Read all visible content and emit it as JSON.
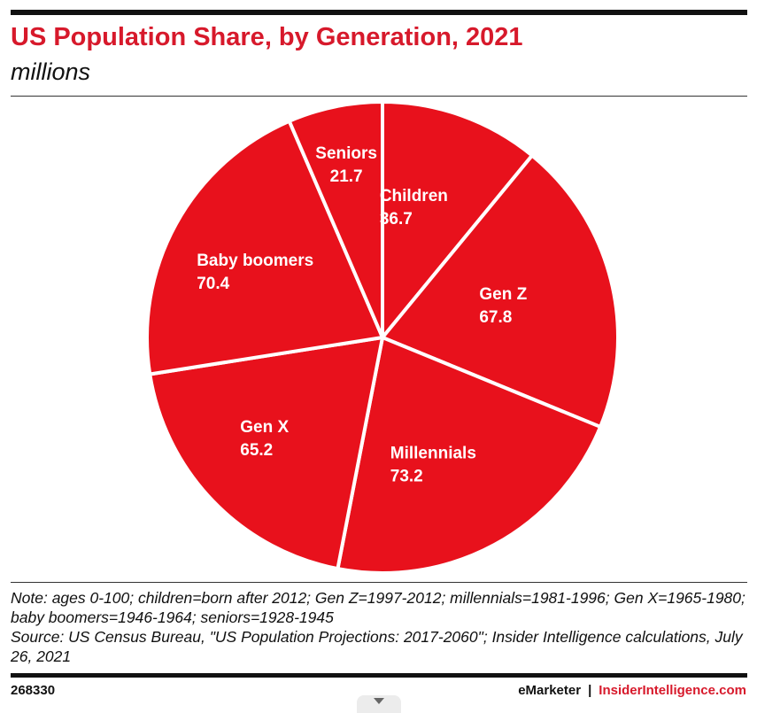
{
  "header": {
    "title": "US Population Share, by Generation, 2021",
    "subtitle": "millions"
  },
  "chart_data": {
    "type": "pie",
    "title": "US Population Share, by Generation, 2021",
    "subtitle": "millions",
    "start_angle_deg": 0,
    "direction": "clockwise",
    "colors": {
      "slice": "#e8111c",
      "divider": "#ffffff"
    },
    "slices": [
      {
        "label": "Children",
        "value": 36.7
      },
      {
        "label": "Gen Z",
        "value": 67.8
      },
      {
        "label": "Millennials",
        "value": 73.2
      },
      {
        "label": "Gen X",
        "value": 65.2
      },
      {
        "label": "Baby boomers",
        "value": 70.4
      },
      {
        "label": "Seniors",
        "value": 21.7
      }
    ]
  },
  "notes": {
    "note": "Note: ages 0-100; children=born after 2012; Gen Z=1997-2012; millennials=1981-1996; Gen X=1965-1980; baby boomers=1946-1964; seniors=1928-1945",
    "source": "Source: US Census Bureau, \"US Population Projections: 2017-2060\"; Insider Intelligence calculations, July 26, 2021"
  },
  "footer": {
    "chart_id": "268330",
    "brand_left": "eMarketer",
    "separator": "|",
    "brand_right": "InsiderIntelligence.com"
  },
  "colors": {
    "accent": "#d7192b",
    "rule": "#111111"
  },
  "icons": {
    "scroll_tab": "chevron-down-icon"
  }
}
